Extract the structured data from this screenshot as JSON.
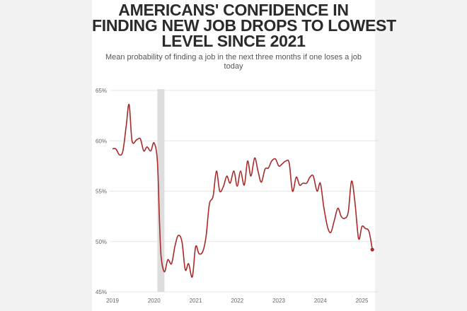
{
  "title_lines": [
    "AMERICANS' CONFIDENCE IN",
    "FINDING NEW JOB DROPS TO LOWEST",
    "LEVEL SINCE 2021"
  ],
  "subtitle_lines": [
    "Mean probability of finding a job in the next three months if one loses a job",
    "today"
  ],
  "colors": {
    "line": "#a82a2a",
    "recession": "#dddddd",
    "grid": "#e6e6e6",
    "text": "#2b2b2b"
  },
  "chart_data": {
    "type": "line",
    "title": "AMERICANS' CONFIDENCE IN FINDING NEW JOB DROPS TO LOWEST LEVEL SINCE 2021",
    "subtitle": "Mean probability of finding a job in the next three months if one loses a job today",
    "xlabel": "",
    "ylabel": "",
    "xlim": [
      2019.0,
      2025.4
    ],
    "ylim": [
      45,
      65
    ],
    "y_ticks": [
      45,
      50,
      55,
      60,
      65
    ],
    "y_tick_labels": [
      "45%",
      "50%",
      "55%",
      "60%",
      "65%"
    ],
    "x_ticks": [
      2019,
      2020,
      2021,
      2022,
      2023,
      2024,
      2025
    ],
    "x_tick_labels": [
      "2019",
      "2020",
      "2021",
      "2022",
      "2023",
      "2024",
      "2025"
    ],
    "grid": "horizontal",
    "shaded_period": [
      2020.08,
      2020.25
    ],
    "series": [
      {
        "values": [
          [
            2019.0,
            59.2
          ],
          [
            2019.08,
            59.2
          ],
          [
            2019.17,
            58.6
          ],
          [
            2019.25,
            59.0
          ],
          [
            2019.33,
            61.5
          ],
          [
            2019.4,
            63.6
          ],
          [
            2019.47,
            60.0
          ],
          [
            2019.58,
            60.1
          ],
          [
            2019.67,
            60.2
          ],
          [
            2019.75,
            59.0
          ],
          [
            2019.83,
            59.4
          ],
          [
            2019.92,
            59.0
          ],
          [
            2020.0,
            59.8
          ],
          [
            2020.08,
            58.0
          ],
          [
            2020.13,
            52.0
          ],
          [
            2020.17,
            48.5
          ],
          [
            2020.25,
            47.0
          ],
          [
            2020.33,
            48.2
          ],
          [
            2020.42,
            47.8
          ],
          [
            2020.5,
            49.5
          ],
          [
            2020.58,
            50.6
          ],
          [
            2020.67,
            50.0
          ],
          [
            2020.75,
            47.2
          ],
          [
            2020.83,
            47.8
          ],
          [
            2020.92,
            46.5
          ],
          [
            2021.0,
            49.5
          ],
          [
            2021.08,
            48.8
          ],
          [
            2021.17,
            49.0
          ],
          [
            2021.25,
            50.5
          ],
          [
            2021.33,
            53.7
          ],
          [
            2021.42,
            54.5
          ],
          [
            2021.5,
            57.0
          ],
          [
            2021.58,
            55.0
          ],
          [
            2021.67,
            55.5
          ],
          [
            2021.75,
            56.5
          ],
          [
            2021.83,
            55.8
          ],
          [
            2021.92,
            57.0
          ],
          [
            2022.0,
            55.5
          ],
          [
            2022.08,
            57.0
          ],
          [
            2022.17,
            55.6
          ],
          [
            2022.25,
            58.0
          ],
          [
            2022.33,
            56.5
          ],
          [
            2022.42,
            58.3
          ],
          [
            2022.5,
            57.0
          ],
          [
            2022.58,
            55.9
          ],
          [
            2022.67,
            57.2
          ],
          [
            2022.75,
            57.3
          ],
          [
            2022.83,
            58.0
          ],
          [
            2022.92,
            58.2
          ],
          [
            2023.0,
            57.5
          ],
          [
            2023.08,
            57.7
          ],
          [
            2023.17,
            58.0
          ],
          [
            2023.25,
            57.8
          ],
          [
            2023.33,
            55.0
          ],
          [
            2023.42,
            56.4
          ],
          [
            2023.5,
            55.6
          ],
          [
            2023.58,
            55.8
          ],
          [
            2023.67,
            55.8
          ],
          [
            2023.75,
            56.4
          ],
          [
            2023.83,
            56.5
          ],
          [
            2023.92,
            55.0
          ],
          [
            2024.0,
            55.8
          ],
          [
            2024.08,
            53.5
          ],
          [
            2024.17,
            51.5
          ],
          [
            2024.25,
            50.9
          ],
          [
            2024.33,
            52.0
          ],
          [
            2024.42,
            53.3
          ],
          [
            2024.5,
            52.5
          ],
          [
            2024.58,
            52.3
          ],
          [
            2024.67,
            52.9
          ],
          [
            2024.75,
            56.0
          ],
          [
            2024.83,
            54.0
          ],
          [
            2024.92,
            50.3
          ],
          [
            2025.0,
            51.5
          ],
          [
            2025.08,
            51.3
          ],
          [
            2025.17,
            51.0
          ],
          [
            2025.25,
            49.2
          ]
        ]
      }
    ]
  }
}
